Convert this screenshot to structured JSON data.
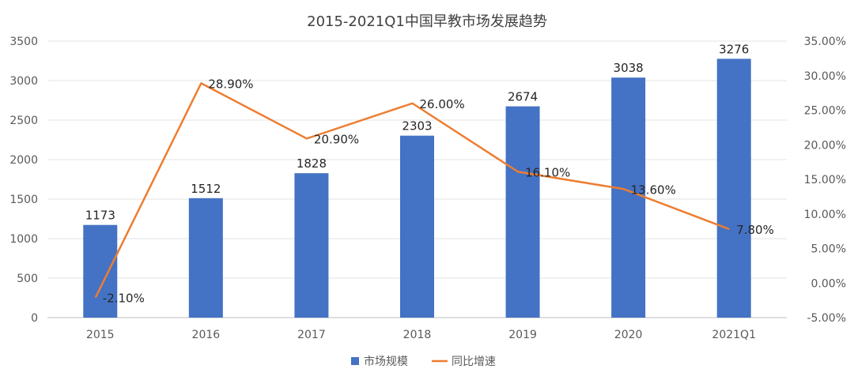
{
  "chart_data": {
    "type": "bar",
    "title": "2015-2021Q1中国早教市场发展趋势",
    "categories": [
      "2015",
      "2016",
      "2017",
      "2018",
      "2019",
      "2020",
      "2021Q1"
    ],
    "series": [
      {
        "name": "市场规模",
        "type": "bar",
        "axis": "left",
        "color": "#4472C4",
        "values": [
          1173,
          1512,
          1828,
          2303,
          2674,
          3038,
          3276
        ],
        "labels": [
          "1173",
          "1512",
          "1828",
          "2303",
          "2674",
          "3038",
          "3276"
        ]
      },
      {
        "name": "同比增速",
        "type": "line",
        "axis": "right",
        "color": "#ED7D31",
        "values": [
          -2.1,
          28.9,
          20.9,
          26.0,
          16.1,
          13.6,
          7.8
        ],
        "labels": [
          "-2.10%",
          "28.90%",
          "20.90%",
          "26.00%",
          "16.10%",
          "13.60%",
          "7.80%"
        ]
      }
    ],
    "y_left": {
      "range": [
        0,
        3500
      ],
      "ticks": [
        "0",
        "500",
        "1000",
        "1500",
        "2000",
        "2500",
        "3000",
        "3500"
      ]
    },
    "y_right": {
      "range": [
        -5,
        35
      ],
      "ticks": [
        "-5.00%",
        "0.00%",
        "5.00%",
        "10.00%",
        "15.00%",
        "20.00%",
        "25.00%",
        "30.00%",
        "35.00%"
      ]
    },
    "grid": true,
    "legend": "bottom"
  }
}
